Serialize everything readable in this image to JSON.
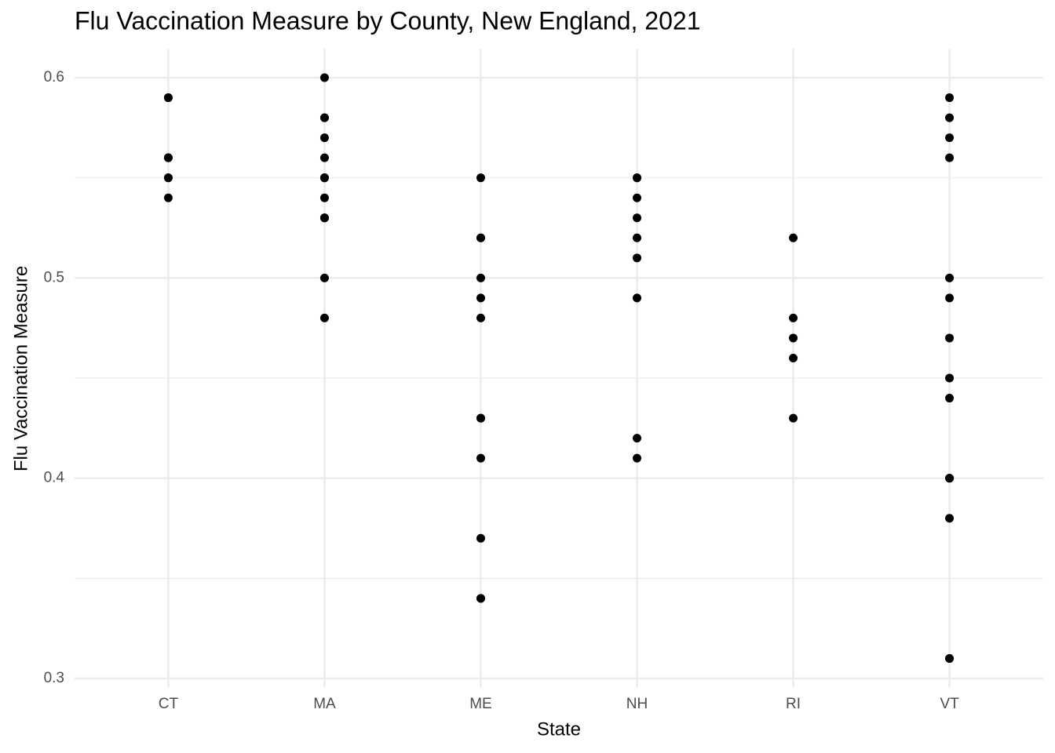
{
  "chart_data": {
    "type": "strip",
    "title": "Flu Vaccination Measure by County, New England, 2021",
    "x_label": "State",
    "y_label": "Flu Vaccination Measure",
    "categories": [
      "CT",
      "MA",
      "ME",
      "NH",
      "RI",
      "VT"
    ],
    "values": [
      [
        0.59,
        0.59,
        0.56,
        0.56,
        0.56,
        0.55,
        0.55,
        0.54
      ],
      [
        0.6,
        0.58,
        0.58,
        0.57,
        0.56,
        0.55,
        0.55,
        0.55,
        0.54,
        0.53,
        0.53,
        0.53,
        0.5,
        0.48
      ],
      [
        0.55,
        0.52,
        0.52,
        0.5,
        0.49,
        0.48,
        0.43,
        0.43,
        0.41,
        0.37,
        0.34,
        0.34
      ],
      [
        0.55,
        0.55,
        0.54,
        0.53,
        0.52,
        0.51,
        0.49,
        0.42,
        0.41
      ],
      [
        0.52,
        0.48,
        0.47,
        0.46,
        0.43
      ],
      [
        0.59,
        0.58,
        0.57,
        0.56,
        0.5,
        0.49,
        0.47,
        0.45,
        0.44,
        0.4,
        0.4,
        0.38,
        0.31,
        0.31
      ]
    ],
    "color": "#000000",
    "ylim": [
      0.2955,
      0.6145
    ],
    "yticks": [
      0.3,
      0.4,
      0.5,
      0.6
    ],
    "minor_yticks": [
      0.35,
      0.45,
      0.55
    ],
    "grid": true
  }
}
